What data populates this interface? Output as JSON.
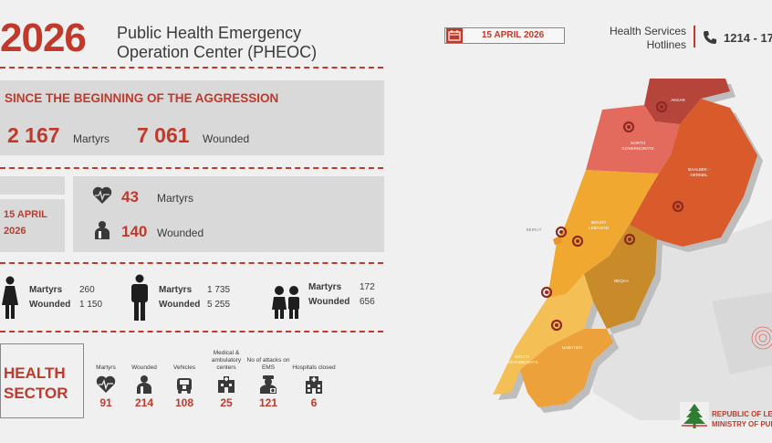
{
  "header": {
    "year": "2026",
    "org_line1": "Public Health Emergency",
    "org_line2": "Operation Center (PHEOC)",
    "date": "15 APRIL 2026",
    "hotlines_line1": "Health Services",
    "hotlines_line2": "Hotlines",
    "hotline_number": "1214 - 17"
  },
  "since": {
    "title": "SINCE THE BEGINNING OF THE AGGRESSION",
    "martyrs_value": "2 167",
    "martyrs_label": "Martyrs",
    "wounded_value": "7 061",
    "wounded_label": "Wounded"
  },
  "daily": {
    "date_line1": "15 APRIL",
    "date_line2": "2026",
    "martyrs_value": "43",
    "martyrs_label": "Martyrs",
    "wounded_value": "140",
    "wounded_label": "Wounded"
  },
  "demographics": [
    {
      "icon": "woman-icon",
      "martyrs_label": "Martyrs",
      "martyrs_value": "260",
      "wounded_label": "Wounded",
      "wounded_value": "1 150"
    },
    {
      "icon": "man-icon",
      "martyrs_label": "Martyrs",
      "martyrs_value": "1 735",
      "wounded_label": "Wounded",
      "wounded_value": "5 255"
    },
    {
      "icon": "children-icon",
      "martyrs_label": "Martyrs",
      "martyrs_value": "172",
      "wounded_label": "Wounded",
      "wounded_value": "656"
    }
  ],
  "health_sector": {
    "title_line1": "HEALTH",
    "title_line2": "SECTOR",
    "items": [
      {
        "label": "Martyrs",
        "value": "91",
        "icon": "heart-pulse-icon"
      },
      {
        "label": "Wounded",
        "value": "214",
        "icon": "injured-person-icon"
      },
      {
        "label": "Vehicles",
        "value": "108",
        "icon": "ambulance-icon"
      },
      {
        "label": "Medical & ambulatory centers",
        "value": "25",
        "icon": "medical-center-icon"
      },
      {
        "label": "No of attacks on EMS",
        "value": "121",
        "icon": "paramedic-icon"
      },
      {
        "label": "Hospitals closed",
        "value": "6",
        "icon": "hospital-icon"
      }
    ]
  },
  "map": {
    "regions": [
      {
        "name": "AKKAR",
        "color": "#b5443b"
      },
      {
        "name": "NORTH GOVERNORATE",
        "color": "#e36b5e"
      },
      {
        "name": "BAALBEK - HERMEL",
        "color": "#d95a2b"
      },
      {
        "name": "MOUNT LEBANON",
        "color": "#f0a830"
      },
      {
        "name": "BEIRUT",
        "color": "#e8952a"
      },
      {
        "name": "BEQAA",
        "color": "#c98a2a"
      },
      {
        "name": "SOUTH GOVERNORATE",
        "color": "#f4bf55"
      },
      {
        "name": "NABATIEH",
        "color": "#eda13a"
      }
    ]
  },
  "footer": {
    "line1": "REPUBLIC OF LEB",
    "line2": "MINISTRY OF PUBLIC"
  },
  "colors": {
    "accent": "#c0392b",
    "panel": "#d9d9d9",
    "background": "#f0f0f0"
  }
}
